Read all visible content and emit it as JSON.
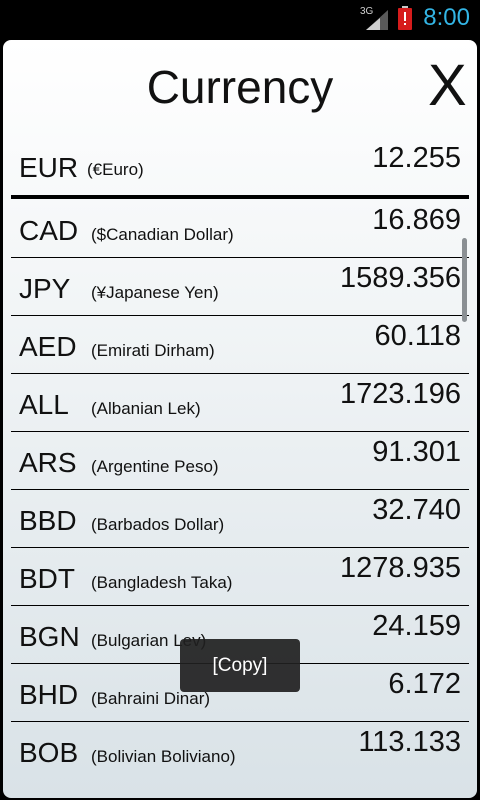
{
  "statusbar": {
    "network": "3G",
    "time": "8:00",
    "icons": [
      "signal-icon",
      "battery-alert-icon"
    ]
  },
  "header": {
    "title": "Currency",
    "close_label": "X"
  },
  "base": {
    "code": "EUR",
    "name": "(€Euro)",
    "value": "12.255"
  },
  "rates": [
    {
      "code": "CAD",
      "name": "($Canadian Dollar)",
      "value": "16.869"
    },
    {
      "code": "JPY",
      "name": "(¥Japanese Yen)",
      "value": "1589.356"
    },
    {
      "code": "AED",
      "name": "(Emirati Dirham)",
      "value": "60.118"
    },
    {
      "code": "ALL",
      "name": "(Albanian Lek)",
      "value": "1723.196"
    },
    {
      "code": "ARS",
      "name": "(Argentine Peso)",
      "value": "91.301"
    },
    {
      "code": "BBD",
      "name": "(Barbados Dollar)",
      "value": "32.740"
    },
    {
      "code": "BDT",
      "name": "(Bangladesh Taka)",
      "value": "1278.935"
    },
    {
      "code": "BGN",
      "name": "(Bulgarian Lev)",
      "value": "24.159"
    },
    {
      "code": "BHD",
      "name": "(Bahraini Dinar)",
      "value": "6.172"
    },
    {
      "code": "BOB",
      "name": "(Bolivian Boliviano)",
      "value": "113.133"
    }
  ],
  "toast": {
    "label": "[Copy]"
  },
  "colors": {
    "status_time": "#33b5e5",
    "panel_top": "#ffffff",
    "panel_bottom": "#d9e2e7"
  }
}
